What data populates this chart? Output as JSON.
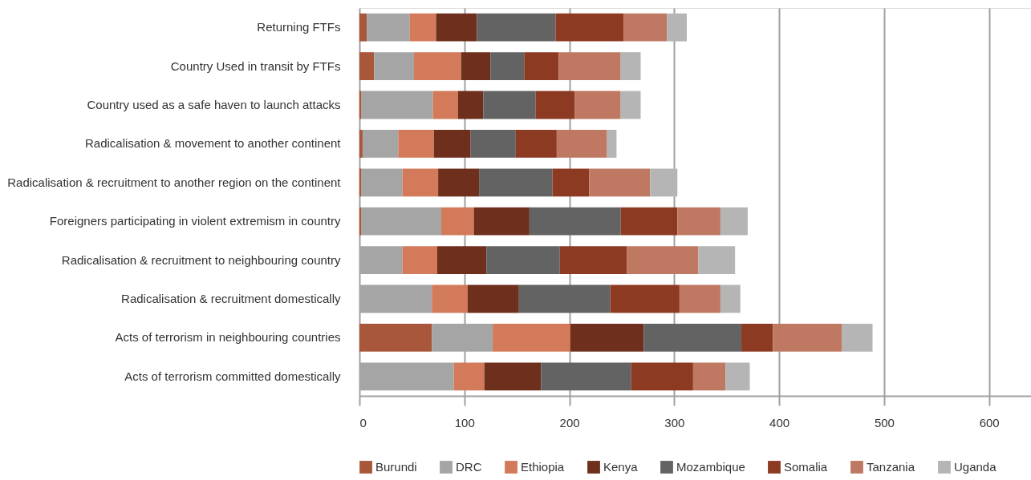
{
  "chart_data": {
    "type": "bar",
    "orientation": "horizontal",
    "stacked": true,
    "categories": [
      "Returning FTFs",
      "Country Used in transit by FTFs",
      "Country used as a safe haven to launch attacks",
      "Radicalisation & movement to another continent",
      "Radicalisation & recruitment to another region on the continent",
      "Foreigners participating in violent extremism in country",
      "Radicalisation & recruitment to neighbouring country",
      "Radicalisation & recruitment domestically",
      "Acts of terrorism in neighbouring countries",
      "Acts of terrorism committed domestically"
    ],
    "series": [
      {
        "name": "Burundi",
        "color": "#a9573b",
        "values": [
          7,
          14,
          2,
          3,
          2,
          2,
          0,
          0,
          69,
          0
        ]
      },
      {
        "name": "DRC",
        "color": "#a5a5a5",
        "values": [
          41,
          38,
          68,
          34,
          39,
          76,
          41,
          69,
          58,
          90
        ]
      },
      {
        "name": "Ethiopia",
        "color": "#d27a5a",
        "values": [
          25,
          45,
          24,
          34,
          34,
          31,
          33,
          34,
          74,
          29
        ]
      },
      {
        "name": "Kenya",
        "color": "#6e2f1d",
        "values": [
          39,
          28,
          24,
          35,
          39,
          53,
          47,
          49,
          70,
          54
        ]
      },
      {
        "name": "Mozambique",
        "color": "#636363",
        "values": [
          75,
          32,
          50,
          43,
          70,
          87,
          70,
          87,
          93,
          86
        ]
      },
      {
        "name": "Somalia",
        "color": "#8d3a22",
        "values": [
          65,
          33,
          37,
          39,
          35,
          54,
          64,
          66,
          30,
          59
        ]
      },
      {
        "name": "Tanzania",
        "color": "#bf7963",
        "values": [
          41,
          59,
          44,
          48,
          58,
          41,
          68,
          39,
          66,
          31
        ]
      },
      {
        "name": "Uganda",
        "color": "#b5b5b5",
        "values": [
          19,
          19,
          19,
          9,
          26,
          26,
          35,
          19,
          29,
          23
        ]
      }
    ],
    "xlim": [
      0,
      640
    ],
    "xticks": [
      0,
      100,
      200,
      300,
      400,
      500,
      600
    ],
    "grid": "x",
    "legend": "bottom"
  }
}
